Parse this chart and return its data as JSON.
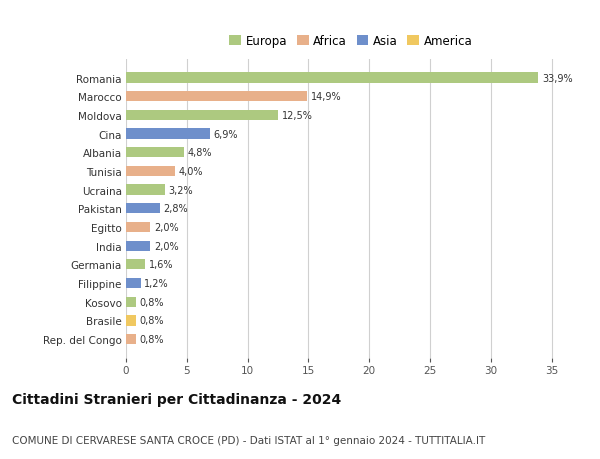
{
  "countries": [
    "Romania",
    "Marocco",
    "Moldova",
    "Cina",
    "Albania",
    "Tunisia",
    "Ucraina",
    "Pakistan",
    "Egitto",
    "India",
    "Germania",
    "Filippine",
    "Kosovo",
    "Brasile",
    "Rep. del Congo"
  ],
  "values": [
    33.9,
    14.9,
    12.5,
    6.9,
    4.8,
    4.0,
    3.2,
    2.8,
    2.0,
    2.0,
    1.6,
    1.2,
    0.8,
    0.8,
    0.8
  ],
  "labels": [
    "33,9%",
    "14,9%",
    "12,5%",
    "6,9%",
    "4,8%",
    "4,0%",
    "3,2%",
    "2,8%",
    "2,0%",
    "2,0%",
    "1,6%",
    "1,2%",
    "0,8%",
    "0,8%",
    "0,8%"
  ],
  "continent": [
    "Europa",
    "Africa",
    "Europa",
    "Asia",
    "Europa",
    "Africa",
    "Europa",
    "Asia",
    "Africa",
    "Asia",
    "Europa",
    "Asia",
    "Europa",
    "America",
    "Africa"
  ],
  "colors": {
    "Europa": "#adc980",
    "Africa": "#e8b08a",
    "Asia": "#6e8fcb",
    "America": "#f0c860"
  },
  "xlim": [
    0,
    37
  ],
  "xticks": [
    0,
    5,
    10,
    15,
    20,
    25,
    30,
    35
  ],
  "title": "Cittadini Stranieri per Cittadinanza - 2024",
  "subtitle": "COMUNE DI CERVARESE SANTA CROCE (PD) - Dati ISTAT al 1° gennaio 2024 - TUTTITALIA.IT",
  "background_color": "#ffffff",
  "grid_color": "#d0d0d0",
  "bar_height": 0.55,
  "title_fontsize": 10,
  "subtitle_fontsize": 7.5,
  "legend_order": [
    "Europa",
    "Africa",
    "Asia",
    "America"
  ]
}
